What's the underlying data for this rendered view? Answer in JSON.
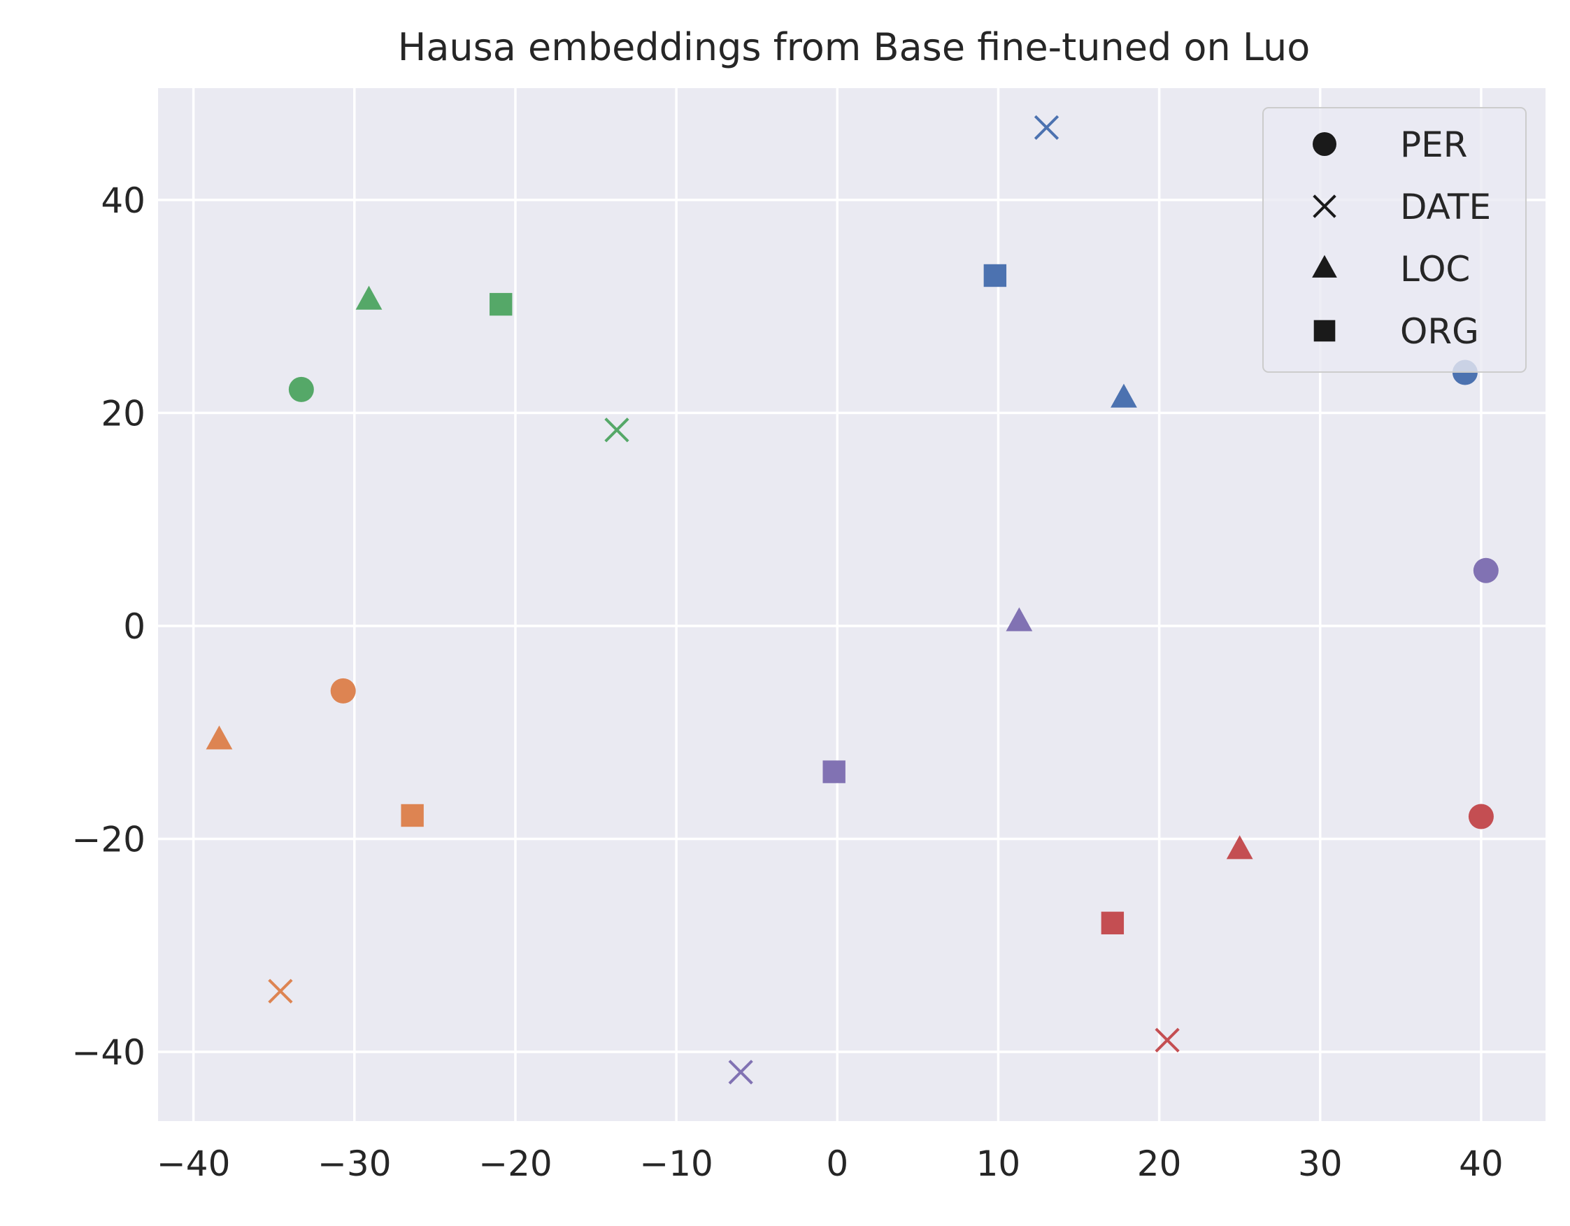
{
  "chart_data": {
    "type": "scatter",
    "title": "Hausa embeddings from Base fine-tuned on Luo",
    "xlabel": "",
    "ylabel": "",
    "xlim": [
      -42.2,
      44
    ],
    "ylim": [
      -46.5,
      50.5
    ],
    "xticks": [
      -40,
      -30,
      -20,
      -10,
      0,
      10,
      20,
      30,
      40
    ],
    "yticks": [
      -40,
      -20,
      0,
      20,
      40
    ],
    "grid": true,
    "background": "#eaeaf2",
    "legend": {
      "placement": "top-right",
      "entries": [
        {
          "label": "PER",
          "marker": "circle"
        },
        {
          "label": "DATE",
          "marker": "x"
        },
        {
          "label": "LOC",
          "marker": "triangle"
        },
        {
          "label": "ORG",
          "marker": "square"
        }
      ]
    },
    "colors": {
      "blue": "#4c72b0",
      "orange": "#dd8452",
      "green": "#55a868",
      "red": "#c44e52",
      "purple": "#8172b3"
    },
    "points": [
      {
        "x": 39.0,
        "y": 23.8,
        "marker": "circle",
        "color": "#4c72b0"
      },
      {
        "x": 13.0,
        "y": 46.8,
        "marker": "x",
        "color": "#4c72b0"
      },
      {
        "x": 17.8,
        "y": 21.4,
        "marker": "triangle",
        "color": "#4c72b0"
      },
      {
        "x": 9.8,
        "y": 32.9,
        "marker": "square",
        "color": "#4c72b0"
      },
      {
        "x": -30.7,
        "y": -6.1,
        "marker": "circle",
        "color": "#dd8452"
      },
      {
        "x": -34.6,
        "y": -34.3,
        "marker": "x",
        "color": "#dd8452"
      },
      {
        "x": -38.4,
        "y": -10.7,
        "marker": "triangle",
        "color": "#dd8452"
      },
      {
        "x": -26.4,
        "y": -17.8,
        "marker": "square",
        "color": "#dd8452"
      },
      {
        "x": -33.3,
        "y": 22.2,
        "marker": "circle",
        "color": "#55a868"
      },
      {
        "x": -13.7,
        "y": 18.4,
        "marker": "x",
        "color": "#55a868"
      },
      {
        "x": -29.1,
        "y": 30.6,
        "marker": "triangle",
        "color": "#55a868"
      },
      {
        "x": -20.9,
        "y": 30.2,
        "marker": "square",
        "color": "#55a868"
      },
      {
        "x": 40.0,
        "y": -17.9,
        "marker": "circle",
        "color": "#c44e52"
      },
      {
        "x": 20.5,
        "y": -38.9,
        "marker": "x",
        "color": "#c44e52"
      },
      {
        "x": 25.0,
        "y": -21.0,
        "marker": "triangle",
        "color": "#c44e52"
      },
      {
        "x": 17.1,
        "y": -27.9,
        "marker": "square",
        "color": "#c44e52"
      },
      {
        "x": 40.3,
        "y": 5.2,
        "marker": "circle",
        "color": "#8172b3"
      },
      {
        "x": -6.0,
        "y": -41.9,
        "marker": "x",
        "color": "#8172b3"
      },
      {
        "x": 11.3,
        "y": 0.4,
        "marker": "triangle",
        "color": "#8172b3"
      },
      {
        "x": -0.2,
        "y": -13.7,
        "marker": "square",
        "color": "#8172b3"
      }
    ]
  }
}
